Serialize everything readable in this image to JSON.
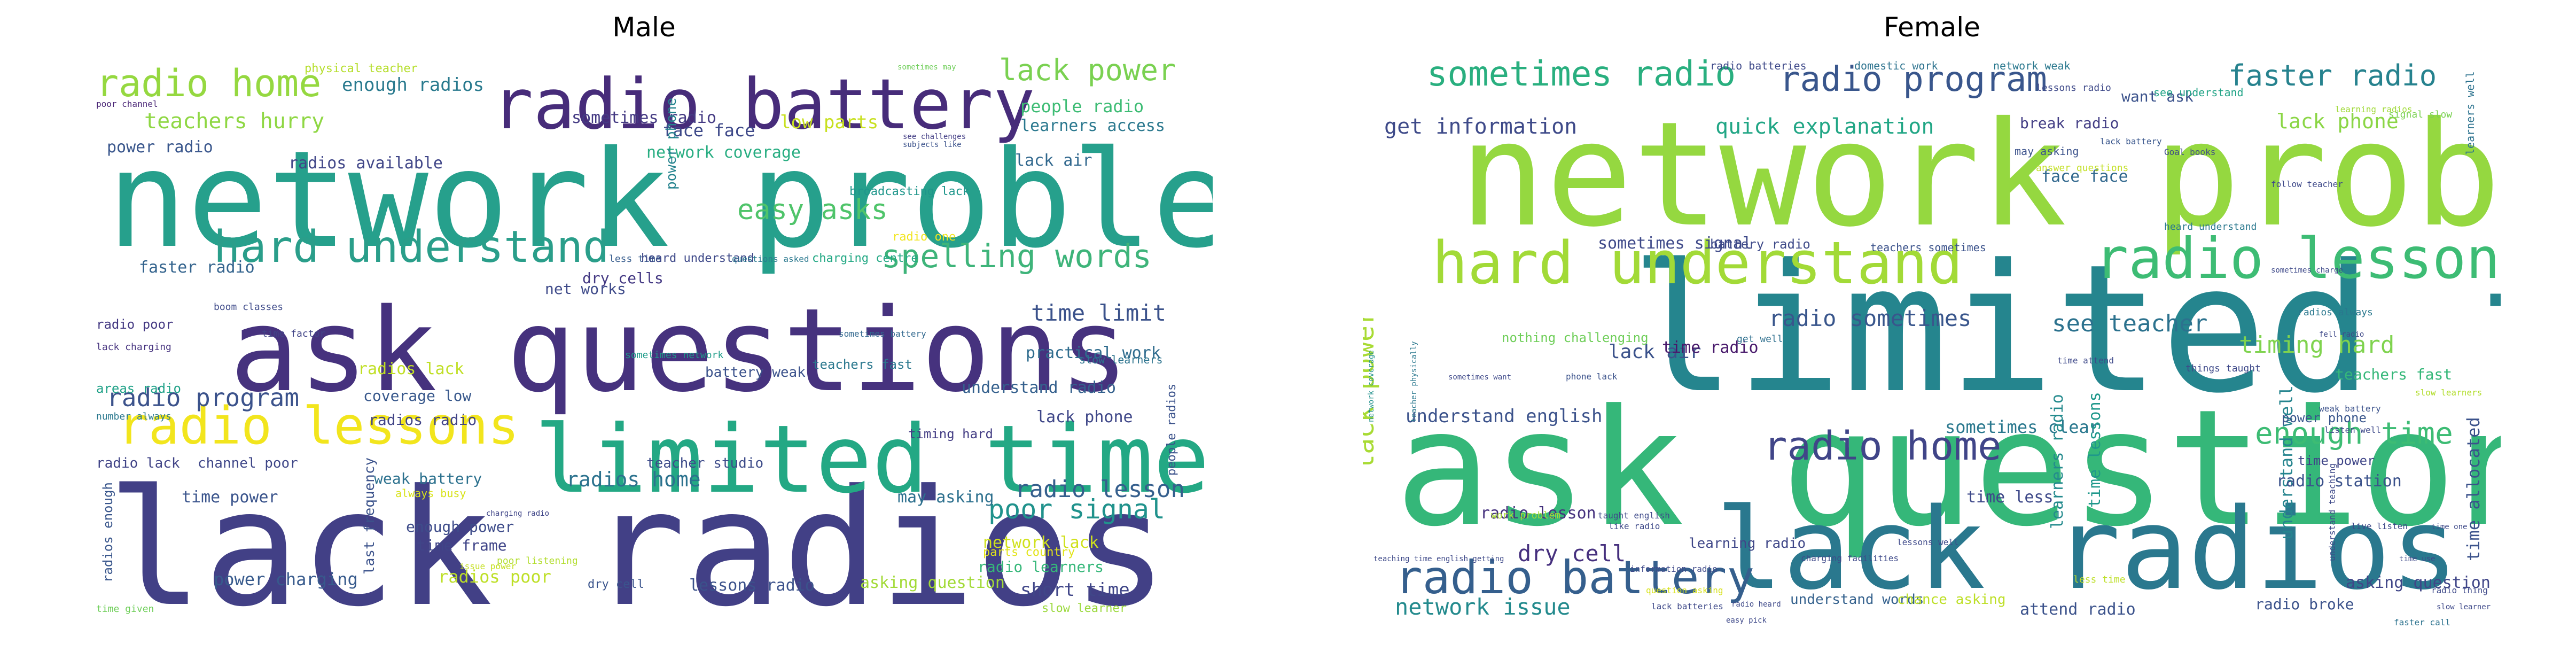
{
  "figure": {
    "panels": [
      {
        "id": "male",
        "title": "Male",
        "words": [
          {
            "t": "lack radios",
            "c": "#424086"
          },
          {
            "t": "network problem",
            "c": "#26a08c"
          },
          {
            "t": "ask questions",
            "c": "#46327e"
          },
          {
            "t": "limited time",
            "c": "#23a884"
          },
          {
            "t": "radio battery",
            "c": "#472c7a"
          },
          {
            "t": "radio lessons",
            "c": "#f2e51d"
          },
          {
            "t": "hard understand",
            "c": "#2a9e8a"
          },
          {
            "t": "radio home",
            "c": "#95d840"
          },
          {
            "t": "spelling words",
            "c": "#3eb47a"
          },
          {
            "t": "lack power",
            "c": "#7ad151"
          },
          {
            "t": "easy asks",
            "c": "#4fc46a"
          },
          {
            "t": "poor signal",
            "c": "#20928c"
          },
          {
            "t": "radio program",
            "c": "#3b528b"
          },
          {
            "t": "radio lesson",
            "c": "#355f8d"
          },
          {
            "t": "time limit",
            "c": "#3b528b"
          },
          {
            "t": "radios home",
            "c": "#2c728e"
          },
          {
            "t": "teachers hurry",
            "c": "#8fd744"
          },
          {
            "t": "enough radios",
            "c": "#297a8e"
          },
          {
            "t": "face face",
            "c": "#3e4989"
          },
          {
            "t": "low parts",
            "c": "#c8e020"
          },
          {
            "t": "people radio",
            "c": "#3dbc74"
          },
          {
            "t": "learners access",
            "c": "#2a788e"
          },
          {
            "t": "sometimes radio",
            "c": "#443a83"
          },
          {
            "t": "radios available",
            "c": "#404688"
          },
          {
            "t": "network coverage",
            "c": "#27ad81"
          },
          {
            "t": "lack air",
            "c": "#31688e"
          },
          {
            "t": "power radio",
            "c": "#39568c"
          },
          {
            "t": "faster radio",
            "c": "#33638d"
          },
          {
            "t": "dry cells",
            "c": "#443983"
          },
          {
            "t": "net works",
            "c": "#3e4a89"
          },
          {
            "t": "practical work",
            "c": "#2f6c8e"
          },
          {
            "t": "understand radio",
            "c": "#34608d"
          },
          {
            "t": "lack phone",
            "c": "#3f4788"
          },
          {
            "t": "coverage low",
            "c": "#38588c"
          },
          {
            "t": "radios lack",
            "c": "#c0df25"
          },
          {
            "t": "radios radio",
            "c": "#414487"
          },
          {
            "t": "time power",
            "c": "#3a548c"
          },
          {
            "t": "weak battery",
            "c": "#2c718e"
          },
          {
            "t": "enough power",
            "c": "#3e4c8a"
          },
          {
            "t": "time frame",
            "c": "#404588"
          },
          {
            "t": "power charging",
            "c": "#375a8c"
          },
          {
            "t": "radios poor",
            "c": "#bddf26"
          },
          {
            "t": "short time",
            "c": "#404688"
          },
          {
            "t": "lessons radio",
            "c": "#3b528b"
          },
          {
            "t": "asking question",
            "c": "#a2da37"
          },
          {
            "t": "network lack",
            "c": "#d0e11c"
          },
          {
            "t": "radio learners",
            "c": "#35b779"
          },
          {
            "t": "parts country",
            "c": "#e2e418"
          },
          {
            "t": "may asking",
            "c": "#2d708e"
          },
          {
            "t": "physical teacher",
            "c": "#b5de2b"
          },
          {
            "t": "power phone",
            "c": "#25838e"
          },
          {
            "t": "broadcasting lack",
            "c": "#1f968b"
          },
          {
            "t": "charging centre",
            "c": "#22a884"
          },
          {
            "t": "people radios",
            "c": "#3b528b"
          },
          {
            "t": "sometimes may",
            "c": "#6ece58"
          },
          {
            "t": "poor channel",
            "c": "#482475"
          },
          {
            "t": "see challenges",
            "c": "#433e85"
          },
          {
            "t": "subjects like",
            "c": "#3b528b"
          },
          {
            "t": "radio poor",
            "c": "#443983"
          },
          {
            "t": "lack charging",
            "c": "#46337f"
          },
          {
            "t": "areas radio",
            "c": "#1fa187"
          },
          {
            "t": "number always",
            "c": "#2a788e"
          },
          {
            "t": "time factor",
            "c": "#414487"
          },
          {
            "t": "boom classes",
            "c": "#3e4a89"
          },
          {
            "t": "less time",
            "c": "#365c8d"
          },
          {
            "t": "heard understand",
            "c": "#3e4989"
          },
          {
            "t": "battery weak",
            "c": "#3b528b"
          },
          {
            "t": "teachers fast",
            "c": "#2a788e"
          },
          {
            "t": "timing hard",
            "c": "#433d84"
          },
          {
            "t": "radio one",
            "c": "#f1e51d"
          },
          {
            "t": "channel poor",
            "c": "#3f4788"
          },
          {
            "t": "radio lack",
            "c": "#414487"
          },
          {
            "t": "always busy",
            "c": "#d8e219"
          },
          {
            "t": "last frequency",
            "c": "#3b528b"
          },
          {
            "t": "radios enough",
            "c": "#39568c"
          },
          {
            "t": "poor listening",
            "c": "#b2dd2d"
          },
          {
            "t": "dry cell",
            "c": "#3a548c"
          },
          {
            "t": "teacher studio",
            "c": "#3e4c8a"
          },
          {
            "t": "time given",
            "c": "#6ece58"
          },
          {
            "t": "slow learner",
            "c": "#9bd93c"
          },
          {
            "t": "slow learners",
            "c": "#2c738e"
          },
          {
            "t": "sometimes network",
            "c": "#1e9c89"
          },
          {
            "t": "questions asked",
            "c": "#2a788e"
          },
          {
            "t": "sometimes battery",
            "c": "#31688e"
          },
          {
            "t": "issue power",
            "c": "#c5e021"
          },
          {
            "t": "charging radio",
            "c": "#404688"
          }
        ]
      },
      {
        "id": "female",
        "title": "Female",
        "words": [
          {
            "t": "limited time",
            "c": "#25858e"
          },
          {
            "t": "network problem",
            "c": "#95d840"
          },
          {
            "t": "ask questions",
            "c": "#35b779"
          },
          {
            "t": "lack radios",
            "c": "#2a788e"
          },
          {
            "t": "hard understand",
            "c": "#a2da37"
          },
          {
            "t": "radio lessons",
            "c": "#3dbc74"
          },
          {
            "t": "radio battery",
            "c": "#355f8d"
          },
          {
            "t": "sometimes radio",
            "c": "#29af7f"
          },
          {
            "t": "radio program",
            "c": "#39568c"
          },
          {
            "t": "faster radio",
            "c": "#26828e"
          },
          {
            "t": "radio home",
            "c": "#404588"
          },
          {
            "t": "enough time",
            "c": "#3dbc74"
          },
          {
            "t": "quick explanation",
            "c": "#21a685"
          },
          {
            "t": "get information",
            "c": "#3e4a89"
          },
          {
            "t": "see teacher",
            "c": "#2c728e"
          },
          {
            "t": "timing hard",
            "c": "#7fd34e"
          },
          {
            "t": "radio sometimes",
            "c": "#39568c"
          },
          {
            "t": "network issue",
            "c": "#238a8d"
          },
          {
            "t": "dry cell",
            "c": "#46307e"
          },
          {
            "t": "lack power",
            "c": "#a8db34"
          },
          {
            "t": "lack phone",
            "c": "#8bd646"
          },
          {
            "t": "want ask",
            "c": "#3b528b"
          },
          {
            "t": "break radio",
            "c": "#433e85"
          },
          {
            "t": "face face",
            "c": "#31688e"
          },
          {
            "t": "lack air",
            "c": "#3b528b"
          },
          {
            "t": "understand english",
            "c": "#3b528b"
          },
          {
            "t": "time radio",
            "c": "#48196b"
          },
          {
            "t": "sometimes clear",
            "c": "#2a788e"
          },
          {
            "t": "time less",
            "c": "#3e4989"
          },
          {
            "t": "learners radio",
            "c": "#238a8d"
          },
          {
            "t": "time lessons",
            "c": "#1f988b"
          },
          {
            "t": "understand well",
            "c": "#25848e"
          },
          {
            "t": "time allocated",
            "c": "#3b528b"
          },
          {
            "t": "radio lesson",
            "c": "#46327e"
          },
          {
            "t": "learning radio",
            "c": "#3f4788"
          },
          {
            "t": "attend radio",
            "c": "#3b528b"
          },
          {
            "t": "understand words",
            "c": "#34618d"
          },
          {
            "t": "chance asking",
            "c": "#bddf26"
          },
          {
            "t": "radio broke",
            "c": "#3b528b"
          },
          {
            "t": "asking question",
            "c": "#404688"
          },
          {
            "t": "radio station",
            "c": "#3b528b"
          },
          {
            "t": "time power",
            "c": "#404688"
          },
          {
            "t": "power phone",
            "c": "#39568c"
          },
          {
            "t": "teachers fast",
            "c": "#35b779"
          },
          {
            "t": "sometimes signal",
            "c": "#3e4989"
          },
          {
            "t": "battery radio",
            "c": "#3e4a89"
          },
          {
            "t": "teachers sometimes",
            "c": "#3b528b"
          },
          {
            "t": "nothing challenging",
            "c": "#6ece58"
          },
          {
            "t": "get well",
            "c": "#2e6f8e"
          },
          {
            "t": "radio batteries",
            "c": "#3e4989"
          },
          {
            "t": "domestic work",
            "c": "#2c728e"
          },
          {
            "t": "network weak",
            "c": "#2a788e"
          },
          {
            "t": "see understand",
            "c": "#20a386"
          },
          {
            "t": "may asking",
            "c": "#3b528b"
          },
          {
            "t": "answer questions",
            "c": "#c2df23"
          },
          {
            "t": "lessons radio",
            "c": "#3e4989"
          },
          {
            "t": "lack battery",
            "c": "#39568c"
          },
          {
            "t": "Goal books",
            "c": "#3e4989"
          },
          {
            "t": "learners well",
            "c": "#2c728e"
          },
          {
            "t": "learning radios",
            "c": "#a0da39"
          },
          {
            "t": "signal slow",
            "c": "#7ad151"
          },
          {
            "t": "heard understand",
            "c": "#2a788e"
          },
          {
            "t": "radios always",
            "c": "#2a788e"
          },
          {
            "t": "things taught",
            "c": "#3e4989"
          },
          {
            "t": "weak battery",
            "c": "#3b528b"
          },
          {
            "t": "listen well",
            "c": "#3e4989"
          },
          {
            "t": "understand teaching",
            "c": "#3e4989"
          },
          {
            "t": "slow learners",
            "c": "#b2dd2d"
          },
          {
            "t": "time use",
            "c": "#3e4989"
          },
          {
            "t": "faster call",
            "c": "#2c728e"
          },
          {
            "t": "sometimes want",
            "c": "#3e4989"
          },
          {
            "t": "phone lack",
            "c": "#3b528b"
          },
          {
            "t": "network coverage",
            "c": "#21918c"
          },
          {
            "t": "teacher physically",
            "c": "#2a788e"
          },
          {
            "t": "teaching time english getting",
            "c": "#3e4989"
          },
          {
            "t": "work problem",
            "c": "#a8db34"
          },
          {
            "t": "taught english",
            "c": "#3e4989"
          },
          {
            "t": "like radio",
            "c": "#3e4989"
          },
          {
            "t": "information radio",
            "c": "#3e4989"
          },
          {
            "t": "question asking",
            "c": "#d8e219"
          },
          {
            "t": "lack batteries",
            "c": "#3e4989"
          },
          {
            "t": "charging facilities",
            "c": "#3e4989"
          },
          {
            "t": "lessons well",
            "c": "#3e4989"
          },
          {
            "t": "radio heard",
            "c": "#3e4989"
          },
          {
            "t": "easy pick",
            "c": "#3e4989"
          },
          {
            "t": "less time",
            "c": "#bddf26"
          },
          {
            "t": "time attend",
            "c": "#3e4989"
          },
          {
            "t": "follow teacher",
            "c": "#3e4989"
          },
          {
            "t": "fell radio",
            "c": "#3e4989"
          },
          {
            "t": "sometimes charge",
            "c": "#3e4989"
          },
          {
            "t": "live listen",
            "c": "#3e4989"
          },
          {
            "t": "time one",
            "c": "#3e4989"
          },
          {
            "t": "radio thing",
            "c": "#3e4989"
          },
          {
            "t": "slow learner",
            "c": "#3e4989"
          }
        ]
      }
    ]
  }
}
